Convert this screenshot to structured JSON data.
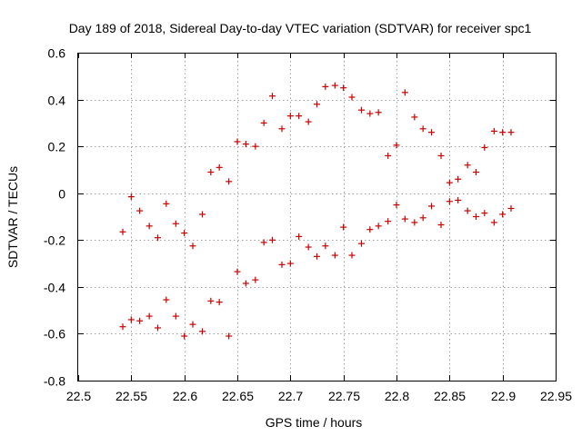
{
  "chart_data": {
    "type": "scatter",
    "title": "Day 189 of 2018, Sidereal Day-to-day VTEC variation (SDTVAR) for receiver spc1",
    "xlabel": "GPS time / hours",
    "ylabel": "SDTVAR / TECUs",
    "xlim": [
      22.5,
      22.95
    ],
    "ylim": [
      -0.8,
      0.6
    ],
    "grid": true,
    "marker": "+",
    "color": "#cc0000",
    "xticks": [
      "22.5",
      "22.55",
      "22.6",
      "22.65",
      "22.7",
      "22.75",
      "22.8",
      "22.85",
      "22.9",
      "22.95"
    ],
    "yticks": [
      "-0.8",
      "-0.6",
      "-0.4",
      "-0.2",
      "0",
      "0.2",
      "0.4",
      "0.6"
    ],
    "xtick_values": [
      22.5,
      22.55,
      22.6,
      22.65,
      22.7,
      22.75,
      22.8,
      22.85,
      22.9,
      22.95
    ],
    "ytick_values": [
      -0.8,
      -0.6,
      -0.4,
      -0.2,
      0,
      0.2,
      0.4,
      0.6
    ],
    "series": [
      {
        "name": "SDTVAR",
        "points": [
          [
            22.542,
            -0.165
          ],
          [
            22.55,
            -0.015
          ],
          [
            22.558,
            -0.075
          ],
          [
            22.567,
            -0.14
          ],
          [
            22.575,
            -0.19
          ],
          [
            22.583,
            -0.045
          ],
          [
            22.592,
            -0.13
          ],
          [
            22.6,
            -0.17
          ],
          [
            22.608,
            -0.225
          ],
          [
            22.617,
            -0.09
          ],
          [
            22.625,
            0.09
          ],
          [
            22.633,
            0.11
          ],
          [
            22.642,
            0.05
          ],
          [
            22.65,
            0.22
          ],
          [
            22.658,
            0.21
          ],
          [
            22.667,
            0.2
          ],
          [
            22.675,
            0.3
          ],
          [
            22.683,
            0.415
          ],
          [
            22.692,
            0.275
          ],
          [
            22.7,
            0.33
          ],
          [
            22.708,
            0.33
          ],
          [
            22.717,
            0.305
          ],
          [
            22.725,
            0.38
          ],
          [
            22.733,
            0.455
          ],
          [
            22.742,
            0.46
          ],
          [
            22.75,
            0.45
          ],
          [
            22.758,
            0.41
          ],
          [
            22.767,
            0.355
          ],
          [
            22.775,
            0.34
          ],
          [
            22.783,
            0.345
          ],
          [
            22.792,
            0.16
          ],
          [
            22.8,
            0.205
          ],
          [
            22.808,
            0.43
          ],
          [
            22.817,
            0.325
          ],
          [
            22.825,
            0.275
          ],
          [
            22.833,
            0.26
          ],
          [
            22.842,
            0.16
          ],
          [
            22.85,
            0.045
          ],
          [
            22.858,
            0.06
          ],
          [
            22.867,
            0.12
          ],
          [
            22.875,
            0.09
          ],
          [
            22.883,
            0.195
          ],
          [
            22.892,
            0.265
          ],
          [
            22.9,
            0.26
          ],
          [
            22.908,
            0.26
          ],
          [
            22.542,
            -0.57
          ],
          [
            22.55,
            -0.54
          ],
          [
            22.558,
            -0.545
          ],
          [
            22.567,
            -0.525
          ],
          [
            22.575,
            -0.575
          ],
          [
            22.583,
            -0.455
          ],
          [
            22.592,
            -0.525
          ],
          [
            22.6,
            -0.61
          ],
          [
            22.608,
            -0.56
          ],
          [
            22.617,
            -0.59
          ],
          [
            22.625,
            -0.46
          ],
          [
            22.633,
            -0.465
          ],
          [
            22.642,
            -0.61
          ],
          [
            22.65,
            -0.335
          ],
          [
            22.658,
            -0.385
          ],
          [
            22.667,
            -0.37
          ],
          [
            22.675,
            -0.21
          ],
          [
            22.683,
            -0.2
          ],
          [
            22.692,
            -0.305
          ],
          [
            22.7,
            -0.3
          ],
          [
            22.708,
            -0.185
          ],
          [
            22.717,
            -0.23
          ],
          [
            22.725,
            -0.27
          ],
          [
            22.733,
            -0.225
          ],
          [
            22.742,
            -0.265
          ],
          [
            22.75,
            -0.145
          ],
          [
            22.758,
            -0.265
          ],
          [
            22.767,
            -0.215
          ],
          [
            22.775,
            -0.155
          ],
          [
            22.783,
            -0.14
          ],
          [
            22.792,
            -0.12
          ],
          [
            22.8,
            -0.05
          ],
          [
            22.808,
            -0.11
          ],
          [
            22.817,
            -0.125
          ],
          [
            22.825,
            -0.105
          ],
          [
            22.833,
            -0.055
          ],
          [
            22.842,
            -0.135
          ],
          [
            22.85,
            -0.035
          ],
          [
            22.858,
            -0.03
          ],
          [
            22.867,
            -0.075
          ],
          [
            22.875,
            -0.1
          ],
          [
            22.883,
            -0.085
          ],
          [
            22.892,
            -0.125
          ],
          [
            22.9,
            -0.09
          ],
          [
            22.908,
            -0.065
          ]
        ]
      }
    ]
  }
}
